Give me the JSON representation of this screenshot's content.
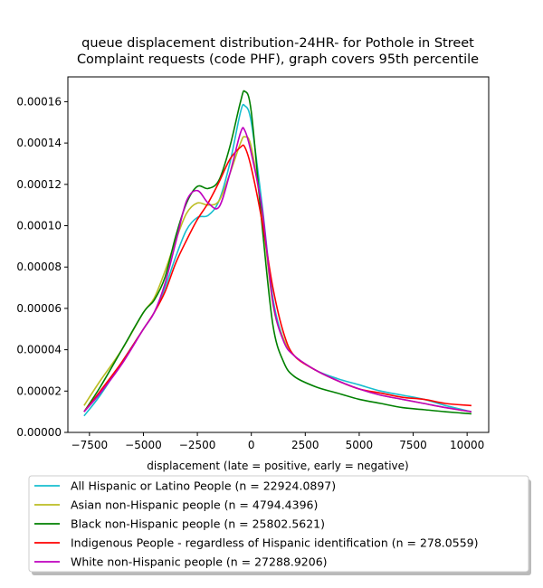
{
  "chart_data": {
    "type": "line",
    "title": [
      "queue displacement distribution-24HR-  for Pothole in Street",
      "Complaint  requests (code PHF), graph covers 95th percentile"
    ],
    "xlabel": "displacement (late = positive, early = negative)",
    "ylabel": "",
    "xlim": [
      -8500,
      11000
    ],
    "ylim": [
      0,
      0.000172
    ],
    "x_ticks": [
      -7500,
      -5000,
      -2500,
      0,
      2500,
      5000,
      7500,
      10000
    ],
    "x_tick_labels": [
      "−7500",
      "−5000",
      "−2500",
      "0",
      "2500",
      "5000",
      "7500",
      "10000"
    ],
    "y_ticks": [
      0,
      2e-05,
      4e-05,
      6e-05,
      8e-05,
      0.0001,
      0.00012,
      0.00014,
      0.00016
    ],
    "y_tick_labels": [
      "0.00000",
      "0.00002",
      "0.00004",
      "0.00006",
      "0.00008",
      "0.00010",
      "0.00012",
      "0.00014",
      "0.00016"
    ],
    "legend_position": "below",
    "series": [
      {
        "name": "All Hispanic or Latino People (n = 22924.0897)",
        "color": "#17becf",
        "x": [
          -7750,
          -7000,
          -6000,
          -5000,
          -4500,
          -4000,
          -3500,
          -3000,
          -2500,
          -2000,
          -1500,
          -1000,
          -500,
          -300,
          0,
          500,
          1000,
          1500,
          2000,
          3000,
          4000,
          5000,
          6000,
          7000,
          8000,
          9000,
          10200
        ],
        "y": [
          8e-06,
          1.8e-05,
          3.4e-05,
          5e-05,
          5.8e-05,
          7e-05,
          8.5e-05,
          9.8e-05,
          0.000104,
          0.000105,
          0.000112,
          0.00013,
          0.000155,
          0.000158,
          0.00015,
          0.00011,
          6.5e-05,
          4.5e-05,
          3.7e-05,
          3e-05,
          2.6e-05,
          2.3e-05,
          2e-05,
          1.8e-05,
          1.6e-05,
          1.3e-05,
          1e-05
        ]
      },
      {
        "name": "Asian non-Hispanic people (n = 4794.4396)",
        "color": "#bcbd22",
        "x": [
          -7750,
          -7000,
          -6000,
          -5000,
          -4500,
          -4000,
          -3500,
          -3000,
          -2500,
          -2000,
          -1500,
          -1000,
          -500,
          -300,
          0,
          500,
          1000,
          1500,
          2000,
          3000,
          4000,
          5000,
          6000,
          7000,
          8000,
          9000,
          10200
        ],
        "y": [
          1.3e-05,
          2.5e-05,
          4e-05,
          5.8e-05,
          6.5e-05,
          7.8e-05,
          9.3e-05,
          0.000106,
          0.000111,
          0.00011,
          0.000112,
          0.000125,
          0.00014,
          0.000143,
          0.000138,
          0.000105,
          6.2e-05,
          4.5e-05,
          3.7e-05,
          3e-05,
          2.5e-05,
          2.1e-05,
          1.8e-05,
          1.6e-05,
          1.4e-05,
          1.2e-05,
          1e-05
        ]
      },
      {
        "name": "Black non-Hispanic people (n = 25802.5621)",
        "color": "#008000",
        "x": [
          -7750,
          -7000,
          -6000,
          -5000,
          -4500,
          -4000,
          -3500,
          -3000,
          -2500,
          -2000,
          -1500,
          -1000,
          -500,
          -300,
          0,
          500,
          1000,
          1500,
          2000,
          3000,
          4000,
          5000,
          6000,
          7000,
          8000,
          9000,
          10200
        ],
        "y": [
          1e-05,
          2.2e-05,
          4e-05,
          5.8e-05,
          6.4e-05,
          7.5e-05,
          9.5e-05,
          0.000111,
          0.000119,
          0.000118,
          0.000122,
          0.000138,
          0.00016,
          0.000165,
          0.000155,
          0.0001,
          5.2e-05,
          3.4e-05,
          2.7e-05,
          2.2e-05,
          1.9e-05,
          1.6e-05,
          1.4e-05,
          1.2e-05,
          1.1e-05,
          1e-05,
          9e-06
        ]
      },
      {
        "name": "Indigenous People - regardless of Hispanic identification (n = 278.0559)",
        "color": "#ff0000",
        "x": [
          -7750,
          -7000,
          -6000,
          -5000,
          -4500,
          -4000,
          -3500,
          -3000,
          -2500,
          -2000,
          -1500,
          -1000,
          -500,
          -300,
          0,
          500,
          1000,
          1500,
          2000,
          3000,
          4000,
          5000,
          6000,
          7000,
          8000,
          9000,
          10200
        ],
        "y": [
          1e-05,
          2e-05,
          3.4e-05,
          5e-05,
          5.8e-05,
          6.8e-05,
          8.2e-05,
          9.3e-05,
          0.000103,
          0.000111,
          0.000121,
          0.000132,
          0.000138,
          0.000138,
          0.000128,
          0.000102,
          7e-05,
          4.8e-05,
          3.7e-05,
          3e-05,
          2.5e-05,
          2.1e-05,
          1.9e-05,
          1.7e-05,
          1.6e-05,
          1.4e-05,
          1.3e-05
        ]
      },
      {
        "name": "White non-Hispanic people (n = 27288.9206)",
        "color": "#bf00bf",
        "x": [
          -7750,
          -7000,
          -6000,
          -5000,
          -4500,
          -4000,
          -3500,
          -3000,
          -2500,
          -2000,
          -1500,
          -1000,
          -500,
          -300,
          0,
          500,
          1000,
          1500,
          2000,
          3000,
          4000,
          5000,
          6000,
          7000,
          8000,
          9000,
          10200
        ],
        "y": [
          1e-05,
          1.9e-05,
          3.3e-05,
          5e-05,
          5.8e-05,
          7.2e-05,
          9.2e-05,
          0.000112,
          0.000117,
          0.000111,
          0.000109,
          0.000125,
          0.000145,
          0.000146,
          0.000135,
          0.000108,
          6.3e-05,
          4.4e-05,
          3.7e-05,
          3e-05,
          2.5e-05,
          2.1e-05,
          1.8e-05,
          1.6e-05,
          1.4e-05,
          1.2e-05,
          1e-05
        ]
      }
    ]
  }
}
